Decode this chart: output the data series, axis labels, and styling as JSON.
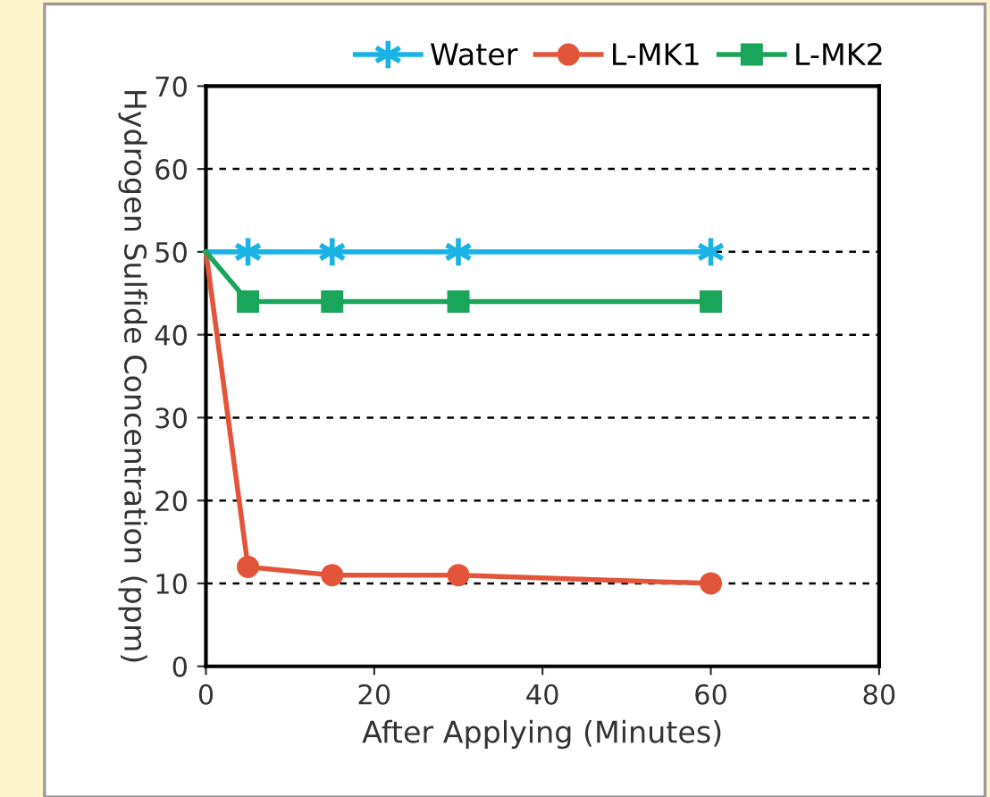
{
  "chart_data": {
    "type": "line",
    "xlabel": "After Applying (Minutes)",
    "ylabel": "Hydrogen Sulfide Concentration (ppm)",
    "x": [
      0,
      5,
      15,
      30,
      60
    ],
    "series": [
      {
        "name": "Water",
        "color": "#1ab3e6",
        "values": [
          50,
          50,
          50,
          50,
          50
        ],
        "marker": "cross"
      },
      {
        "name": "L-MK1",
        "color": "#e2553b",
        "values": [
          50,
          12,
          11,
          11,
          10
        ],
        "marker": "circle"
      },
      {
        "name": "L-MK2",
        "color": "#1aa65a",
        "values": [
          50,
          44,
          44,
          44,
          44
        ],
        "marker": "square"
      }
    ],
    "xlim": [
      0,
      80
    ],
    "xticks": [
      0,
      20,
      40,
      60,
      80
    ],
    "ylim": [
      0,
      70
    ],
    "yticks": [
      0,
      10,
      20,
      30,
      40,
      50,
      60,
      70
    ],
    "grid": "y",
    "legend": "top right",
    "line_style": "solid"
  }
}
